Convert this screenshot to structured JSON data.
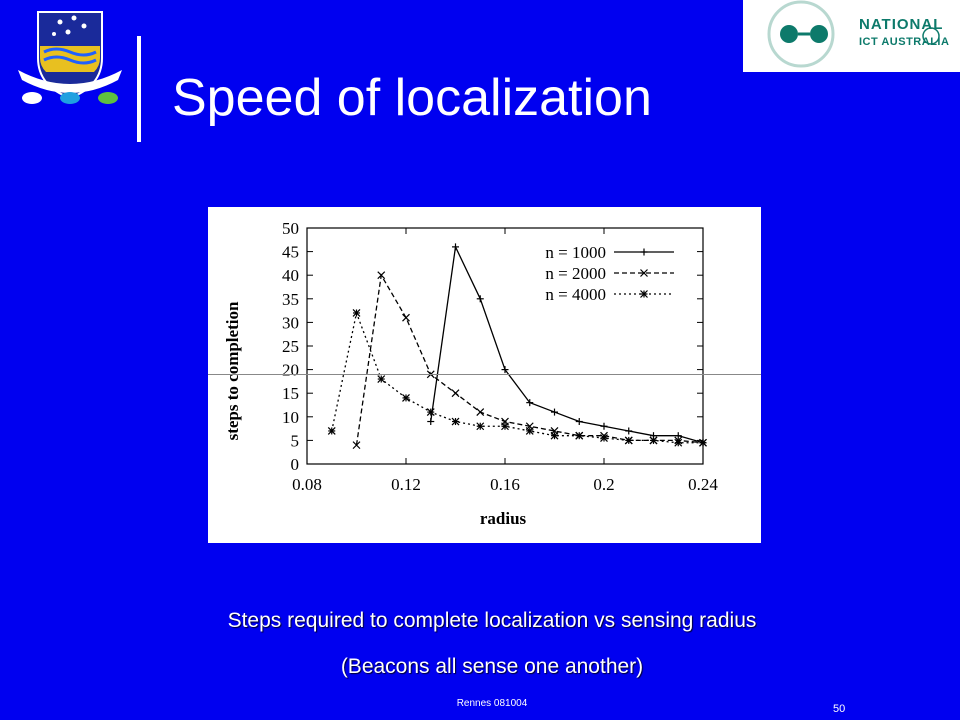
{
  "slide": {
    "title": "Speed of localization",
    "caption_line1": "Steps required to complete localization vs sensing radius",
    "caption_line2": "(Beacons all sense one another)",
    "footer": "Rennes 081004",
    "page_number": "50"
  },
  "logos": {
    "left_crest": "university-crest",
    "right_logo_line1": "NATIONAL",
    "right_logo_line2": "ICT AUSTRALIA",
    "logo_color": "#0d7a6b"
  },
  "colors": {
    "background": "#0000f0",
    "text": "#ffffff"
  },
  "chart_data": {
    "type": "line",
    "xlabel": "radius",
    "ylabel": "steps to completion",
    "xlim": [
      0.08,
      0.24
    ],
    "ylim": [
      0,
      50
    ],
    "xticks": [
      "0.08",
      "0.12",
      "0.16",
      "0.2",
      "0.24"
    ],
    "yticks": [
      "0",
      "5",
      "10",
      "15",
      "20",
      "25",
      "30",
      "35",
      "40",
      "45",
      "50"
    ],
    "legend_position": "top-right",
    "grid": false,
    "series": [
      {
        "name": "n = 1000",
        "style": "solid",
        "marker": "+",
        "x": [
          0.13,
          0.14,
          0.15,
          0.16,
          0.17,
          0.18,
          0.19,
          0.2,
          0.21,
          0.22,
          0.23,
          0.24
        ],
        "y": [
          9,
          46,
          35,
          20,
          13,
          11,
          9,
          8,
          7,
          6,
          6,
          4.5
        ]
      },
      {
        "name": "n = 2000",
        "style": "dashed",
        "marker": "x",
        "x": [
          0.1,
          0.11,
          0.12,
          0.13,
          0.14,
          0.15,
          0.16,
          0.17,
          0.18,
          0.19,
          0.2,
          0.21,
          0.22,
          0.23,
          0.24
        ],
        "y": [
          4,
          40,
          31,
          19,
          15,
          11,
          9,
          8,
          7,
          6,
          6,
          5,
          5,
          5,
          4.5
        ]
      },
      {
        "name": "n = 4000",
        "style": "dotted",
        "marker": "*",
        "x": [
          0.09,
          0.1,
          0.11,
          0.12,
          0.13,
          0.14,
          0.15,
          0.16,
          0.17,
          0.18,
          0.19,
          0.2,
          0.21,
          0.22,
          0.23,
          0.24
        ],
        "y": [
          7,
          32,
          18,
          14,
          11,
          9,
          8,
          8,
          7,
          6,
          6,
          5.5,
          5,
          5,
          4.5,
          4.5
        ]
      }
    ]
  }
}
